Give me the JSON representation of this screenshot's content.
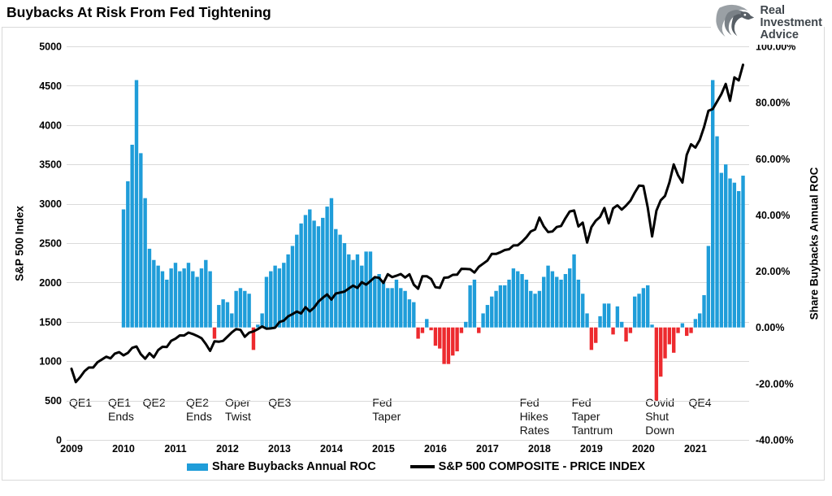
{
  "title": "Buybacks At Risk From Fed Tightening",
  "logo": {
    "line1": "Real",
    "line2": "Investment",
    "line3": "Advice"
  },
  "colors": {
    "bar_positive": "#1f9dd9",
    "bar_negative": "#ed2a2e",
    "line": "#000000",
    "grid": "#dadada",
    "logo_gray_dark": "#585f66",
    "logo_gray_mid": "#7a8187",
    "logo_gray_light": "#9aa0a5"
  },
  "legend": {
    "items": [
      {
        "label": "Share Buybacks Annual ROC",
        "swatch": "bar-swatch"
      },
      {
        "label": "S&P 500 COMPOSITE - PRICE INDEX",
        "swatch": "line-swatch"
      }
    ]
  },
  "chart_data": {
    "type": "combo",
    "title": "Buybacks At Risk From Fed Tightening",
    "grid": true,
    "left_axis": {
      "label": "S&P 500 Index",
      "range": [
        0,
        5000
      ],
      "ticks": [
        5000,
        4500,
        4000,
        3500,
        3000,
        2500,
        2000,
        1500,
        1000,
        500,
        0
      ]
    },
    "right_axis": {
      "label": "Share Buybacks Annual ROC",
      "range": [
        -40,
        100
      ],
      "ticks": [
        {
          "v": 100,
          "label": "100.00%"
        },
        {
          "v": 80,
          "label": "80.00%"
        },
        {
          "v": 60,
          "label": "60.00%"
        },
        {
          "v": 40,
          "label": "40.00%"
        },
        {
          "v": 20,
          "label": "20.00%"
        },
        {
          "v": 0,
          "label": "0.00%"
        },
        {
          "v": -20,
          "label": "-20.00%"
        },
        {
          "v": -40,
          "label": "-40.00%"
        }
      ]
    },
    "x_axis": {
      "start": "2009-01",
      "years": [
        "2009",
        "2010",
        "2011",
        "2012",
        "2013",
        "2014",
        "2015",
        "2016",
        "2017",
        "2018",
        "2019",
        "2020",
        "2021"
      ]
    },
    "series": [
      {
        "name": "Share Buybacks Annual ROC",
        "type": "bar",
        "unit": "%",
        "start_month_index": 12,
        "start_month": "2010-01",
        "values": [
          42,
          52,
          65,
          88,
          62,
          46,
          28,
          24,
          22,
          20,
          17,
          21,
          23,
          20,
          21,
          23,
          20,
          18,
          21,
          24,
          20,
          -4,
          8,
          10,
          9,
          5,
          13,
          14,
          13,
          12,
          -8,
          1,
          5,
          18,
          20,
          22,
          21,
          23,
          26,
          29,
          33,
          37,
          40,
          42,
          38,
          36,
          39,
          43,
          46,
          35,
          33,
          30,
          26,
          24,
          26,
          22,
          27,
          27,
          18,
          19,
          16,
          14,
          14,
          17,
          14,
          13,
          10,
          9,
          -4,
          -2,
          3,
          -1,
          -6.5,
          -7.5,
          -13,
          -13,
          -10,
          -8.5,
          -2,
          2,
          15,
          17,
          -2,
          5,
          8,
          11,
          13,
          15,
          15,
          17,
          21,
          20,
          19,
          17,
          13,
          12,
          13,
          18,
          22,
          20,
          18,
          17,
          19,
          21,
          26,
          17,
          12,
          5,
          -8,
          -5.5,
          4,
          8.5,
          8.5,
          -2.5,
          7.5,
          2,
          -5,
          -2,
          11,
          12,
          14,
          15,
          1,
          -26,
          -17.5,
          -11,
          -6,
          -9,
          -2,
          1.5,
          -3,
          -2,
          3,
          5,
          11.5,
          29,
          88,
          68,
          55,
          58,
          53,
          51.5,
          48.5,
          54
        ]
      },
      {
        "name": "S&P 500 COMPOSITE - PRICE INDEX",
        "type": "line",
        "unit": "index",
        "start_month_index": 0,
        "start_month": "2009-01",
        "values": [
          903,
          735,
          798,
          873,
          919,
          919,
          987,
          1021,
          1057,
          1036,
          1096,
          1115,
          1074,
          1104,
          1169,
          1187,
          1089,
          1031,
          1102,
          1049,
          1141,
          1183,
          1181,
          1258,
          1286,
          1327,
          1326,
          1364,
          1345,
          1321,
          1292,
          1219,
          1131,
          1253,
          1247,
          1258,
          1312,
          1366,
          1408,
          1398,
          1310,
          1362,
          1379,
          1407,
          1441,
          1412,
          1416,
          1426,
          1498,
          1515,
          1569,
          1598,
          1631,
          1606,
          1686,
          1633,
          1682,
          1757,
          1806,
          1848,
          1783,
          1859,
          1872,
          1884,
          1924,
          1960,
          1931,
          2003,
          1972,
          2018,
          2068,
          2059,
          1995,
          2105,
          2068,
          2086,
          2107,
          2063,
          2104,
          1972,
          1920,
          2079,
          2080,
          2044,
          1940,
          1932,
          2060,
          2065,
          2097,
          2099,
          2174,
          2171,
          2168,
          2126,
          2199,
          2239,
          2279,
          2364,
          2363,
          2384,
          2412,
          2423,
          2470,
          2472,
          2519,
          2575,
          2648,
          2674,
          2824,
          2714,
          2641,
          2648,
          2705,
          2718,
          2816,
          2902,
          2914,
          2712,
          2760,
          2507,
          2704,
          2784,
          2834,
          2946,
          2752,
          2942,
          2980,
          2926,
          2977,
          3038,
          3141,
          3231,
          3226,
          2954,
          2585,
          2912,
          3044,
          3100,
          3271,
          3500,
          3363,
          3270,
          3622,
          3756,
          3714,
          3811,
          3973,
          4181,
          4204,
          4298,
          4395,
          4523,
          4308,
          4605,
          4567,
          4766
        ]
      }
    ],
    "annotations": [
      {
        "label": "QE1",
        "month_index": 0
      },
      {
        "label": "QE1\nEnds",
        "month_index": 9
      },
      {
        "label": "QE2",
        "month_index": 17
      },
      {
        "label": "QE2\nEnds",
        "month_index": 27
      },
      {
        "label": "Oper\nTwist",
        "month_index": 36
      },
      {
        "label": "QE3",
        "month_index": 46
      },
      {
        "label": "Fed\nTaper",
        "month_index": 70
      },
      {
        "label": "Fed\nHikes\nRates",
        "month_index": 104
      },
      {
        "label": "Fed\nTaper\nTantrum",
        "month_index": 116
      },
      {
        "label": "Covid\nShut\nDown",
        "month_index": 133
      },
      {
        "label": "QE4",
        "month_index": 143
      }
    ]
  }
}
